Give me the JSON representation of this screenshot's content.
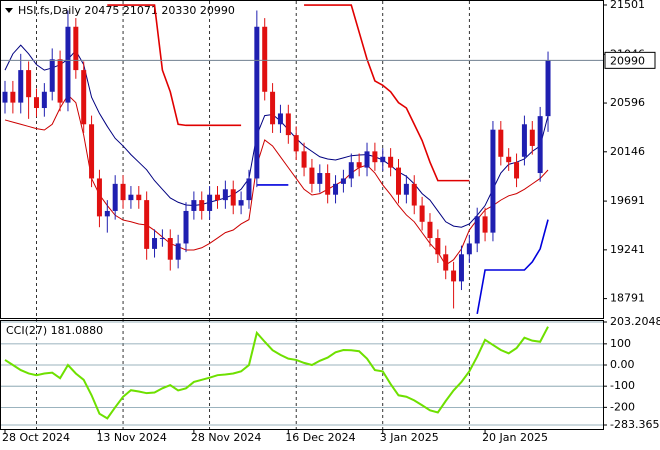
{
  "chart_data": [
    {
      "type": "candlestick",
      "title": "HSI.fs,Daily  20475 21071 20330 20990",
      "categories": [
        "28 Oct 2024",
        null,
        null,
        null,
        null,
        null,
        null,
        null,
        null,
        null,
        null,
        null,
        "13 Nov 2024",
        null,
        null,
        null,
        null,
        null,
        null,
        null,
        null,
        null,
        null,
        null,
        "28 Nov 2024",
        null,
        null,
        null,
        null,
        null,
        null,
        null,
        null,
        null,
        null,
        null,
        "16 Dec 2024",
        null,
        null,
        null,
        null,
        null,
        null,
        null,
        null,
        null,
        null,
        null,
        "3 Jan 2025",
        null,
        null,
        null,
        null,
        null,
        null,
        null,
        null,
        null,
        null,
        null,
        null,
        "20 Jan 2025",
        null,
        null,
        null,
        null,
        null,
        null,
        null,
        null
      ],
      "open": [
        20600,
        20700,
        20600,
        20900,
        20650,
        20550,
        20700,
        21000,
        20600,
        21300,
        20900,
        20400,
        19900,
        19550,
        19600,
        19850,
        19700,
        19750,
        19700,
        19250,
        19350,
        19350,
        19150,
        19300,
        19600,
        19700,
        19600,
        19750,
        19700,
        19800,
        19650,
        19700,
        19900,
        21300,
        20700,
        20400,
        20500,
        20300,
        20150,
        20000,
        19850,
        19950,
        19750,
        19850,
        19900,
        20050,
        20000,
        20150,
        20050,
        20100,
        20000,
        19750,
        19850,
        19650,
        19500,
        19350,
        19200,
        19050,
        18950,
        19200,
        19300,
        19550,
        19400,
        20350,
        20100,
        20050,
        20100,
        20350,
        19950,
        20475
      ],
      "high": [
        20800,
        20800,
        21050,
        20980,
        20730,
        20780,
        21100,
        21080,
        21450,
        21380,
        20980,
        20480,
        19980,
        19700,
        19930,
        19930,
        19830,
        19830,
        19780,
        19430,
        19430,
        19430,
        19380,
        19680,
        19780,
        19780,
        19830,
        19830,
        19880,
        19880,
        19780,
        19980,
        21450,
        21380,
        20780,
        20580,
        20580,
        20380,
        20230,
        20080,
        20030,
        20030,
        19930,
        19980,
        20130,
        20130,
        20230,
        20230,
        20180,
        20180,
        20080,
        19930,
        19930,
        19730,
        19580,
        19430,
        19280,
        19130,
        19280,
        19380,
        19630,
        19630,
        20430,
        20430,
        20180,
        20130,
        20480,
        20430,
        20560,
        21071
      ],
      "low": [
        20500,
        20500,
        20500,
        20450,
        20470,
        20470,
        20620,
        20520,
        20520,
        20820,
        20320,
        19820,
        19450,
        19400,
        19520,
        19620,
        19620,
        19620,
        19150,
        19170,
        19270,
        19050,
        19070,
        19220,
        19520,
        19520,
        19520,
        19620,
        19620,
        19570,
        19570,
        19620,
        19820,
        20620,
        20320,
        20320,
        20220,
        20070,
        19920,
        19770,
        19770,
        19670,
        19670,
        19770,
        19820,
        19920,
        19920,
        19970,
        19970,
        19920,
        19670,
        19670,
        19570,
        19420,
        19270,
        19120,
        18970,
        18700,
        18870,
        19120,
        19220,
        19320,
        19320,
        20020,
        19970,
        19820,
        20020,
        20120,
        19870,
        20330
      ],
      "close": [
        20700,
        20600,
        20900,
        20650,
        20550,
        20700,
        21000,
        20600,
        21300,
        20900,
        20400,
        19900,
        19550,
        19600,
        19850,
        19700,
        19750,
        19700,
        19250,
        19350,
        19350,
        19150,
        19300,
        19600,
        19700,
        19600,
        19750,
        19700,
        19800,
        19650,
        19700,
        19900,
        21300,
        20700,
        20400,
        20500,
        20300,
        20150,
        20000,
        19850,
        19950,
        19750,
        19850,
        19900,
        20050,
        20000,
        20150,
        20050,
        20100,
        20000,
        19750,
        19850,
        19650,
        19500,
        19350,
        19200,
        19050,
        18950,
        19200,
        19300,
        19550,
        19400,
        20350,
        20100,
        20050,
        19900,
        20400,
        20200,
        20475,
        20990
      ],
      "up_color": "#1f1fb0",
      "down_color": "#e01010",
      "ylim": [
        18612,
        21547
      ],
      "yticks": [
        21501,
        21046,
        20596,
        20146,
        19691,
        19241,
        18791
      ],
      "series": [
        {
          "color": "#000080",
          "values": [
            20900,
            21050,
            21130,
            21050,
            20950,
            20900,
            20920,
            20950,
            21000,
            21080,
            20950,
            20650,
            20500,
            20380,
            20270,
            20200,
            20120,
            20050,
            19980,
            19880,
            19800,
            19720,
            19680,
            19655,
            19650,
            19660,
            19680,
            19700,
            19720,
            19750,
            19800,
            19900,
            20300,
            20480,
            20490,
            20430,
            20350,
            20270,
            20200,
            20150,
            20100,
            20080,
            20070,
            20090,
            20110,
            20117,
            20120,
            20100,
            20070,
            20020,
            19960,
            19920,
            19850,
            19760,
            19700,
            19600,
            19500,
            19460,
            19450,
            19480,
            19560,
            19650,
            19800,
            19950,
            20030,
            20050,
            20080,
            20150,
            20200,
            20480
          ]
        },
        {
          "color": "#cc0000",
          "values": [
            20440,
            20420,
            20400,
            20380,
            20360,
            20347,
            20400,
            20550,
            20670,
            20600,
            20300,
            19900,
            19750,
            19650,
            19560,
            19516,
            19500,
            19480,
            19470,
            19420,
            19360,
            19300,
            19270,
            19240,
            19240,
            19260,
            19300,
            19350,
            19400,
            19424,
            19480,
            19520,
            20024,
            20255,
            20200,
            20100,
            20000,
            19900,
            19800,
            19747,
            19760,
            19800,
            19840,
            19880,
            19950,
            20000,
            20024,
            19950,
            19840,
            19750,
            19650,
            19563,
            19500,
            19400,
            19300,
            19220,
            19101,
            19150,
            19250,
            19424,
            19520,
            19609,
            19650,
            19700,
            19740,
            19760,
            19800,
            19850,
            19900,
            19978
          ]
        },
        {
          "color": "#e00000",
          "width": 1.6,
          "values": [
            null,
            null,
            null,
            null,
            null,
            null,
            null,
            null,
            null,
            null,
            null,
            null,
            null,
            21500,
            21500,
            21500,
            21500,
            21500,
            21500,
            21500,
            20900,
            20700,
            20400,
            20390,
            20390,
            20390,
            20390,
            20390,
            20390,
            20390,
            20390,
            null,
            null,
            null,
            null,
            null,
            null,
            null,
            21500,
            21500,
            21500,
            21500,
            21500,
            21500,
            21500,
            21250,
            21000,
            20800,
            20760,
            20700,
            20600,
            20550,
            20400,
            20250,
            20050,
            19880,
            19880,
            19880,
            19880,
            19880,
            null,
            null,
            null,
            null,
            null,
            null,
            null,
            null,
            null,
            null
          ]
        },
        {
          "color": "#0000dd",
          "width": 1.6,
          "values": [
            null,
            null,
            null,
            null,
            null,
            null,
            null,
            null,
            null,
            null,
            null,
            null,
            null,
            null,
            null,
            null,
            null,
            null,
            null,
            null,
            null,
            null,
            null,
            null,
            null,
            null,
            null,
            null,
            null,
            null,
            null,
            null,
            19840,
            19840,
            19840,
            19840,
            19840,
            null,
            null,
            null,
            null,
            null,
            null,
            null,
            null,
            null,
            null,
            null,
            null,
            null,
            null,
            null,
            null,
            null,
            null,
            null,
            null,
            null,
            null,
            null,
            18650,
            19055,
            19055,
            19055,
            19055,
            19055,
            19055,
            19130,
            19250,
            19520
          ]
        }
      ]
    },
    {
      "type": "line",
      "title": "CCI(27) 181.0880",
      "color": "#6ee000",
      "values": [
        24,
        0,
        -24,
        -40,
        -48,
        -40,
        -36,
        -62,
        0,
        -40,
        -70,
        -143,
        -230,
        -252,
        -200,
        -150,
        -119,
        -125,
        -133,
        -130,
        -110,
        -95,
        -120,
        -110,
        -80,
        -70,
        -60,
        -48,
        -45,
        -40,
        -30,
        0,
        152,
        110,
        70,
        48,
        30,
        24,
        10,
        0,
        20,
        35,
        60,
        71,
        70,
        65,
        30,
        -24,
        -30,
        -90,
        -143,
        -150,
        -167,
        -190,
        -214,
        -224,
        -170,
        -120,
        -80,
        -30,
        40,
        119,
        95,
        71,
        55,
        80,
        129,
        115,
        110,
        181.088
      ],
      "ylim": [
        -283.3654,
        203.2048
      ],
      "yticks": [
        203.2048,
        100,
        {
          "value": 0,
          "label": "0.00"
        },
        -100,
        -200,
        -283.3654
      ]
    }
  ]
}
